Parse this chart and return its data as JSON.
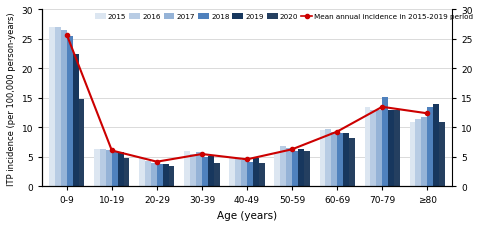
{
  "age_groups": [
    "0-9",
    "10-19",
    "20-29",
    "30-39",
    "40-49",
    "50-59",
    "60-69",
    "70-79",
    "≥80"
  ],
  "years": [
    "2015",
    "2016",
    "2017",
    "2018",
    "2019",
    "2020"
  ],
  "bar_colors": {
    "2015": "#dce6f1",
    "2016": "#b8cce4",
    "2017": "#95b3d7",
    "2018": "#4f81bd",
    "2019": "#17375e",
    "2020": "#243f60"
  },
  "data": {
    "2015": [
      27.0,
      6.4,
      5.0,
      6.0,
      5.0,
      5.8,
      9.5,
      13.5,
      11.0
    ],
    "2016": [
      27.0,
      6.3,
      4.4,
      5.5,
      4.7,
      6.8,
      9.8,
      13.0,
      11.5
    ],
    "2017": [
      26.5,
      6.2,
      4.0,
      5.8,
      4.5,
      6.5,
      9.2,
      13.0,
      11.8
    ],
    "2018": [
      25.5,
      6.0,
      3.8,
      5.0,
      4.2,
      6.0,
      9.0,
      15.2,
      13.5
    ],
    "2019": [
      22.5,
      5.8,
      3.8,
      5.2,
      4.8,
      6.3,
      9.0,
      13.0,
      14.0
    ],
    "2020": [
      14.8,
      4.8,
      3.5,
      4.0,
      4.0,
      6.0,
      8.2,
      13.0,
      11.0
    ]
  },
  "mean_line": [
    25.7,
    6.1,
    4.2,
    5.5,
    4.6,
    6.3,
    9.3,
    13.5,
    12.4
  ],
  "ylim": [
    0,
    30
  ],
  "yticks": [
    0,
    5,
    10,
    15,
    20,
    25,
    30
  ],
  "xlabel": "Age (years)",
  "ylabel": "ITP incidence (per 100,000 person-years)",
  "line_color": "#cc0000",
  "line_label": "Mean annual incidence in 2015-2019 period",
  "background_color": "#ffffff",
  "grid_color": "#cccccc"
}
